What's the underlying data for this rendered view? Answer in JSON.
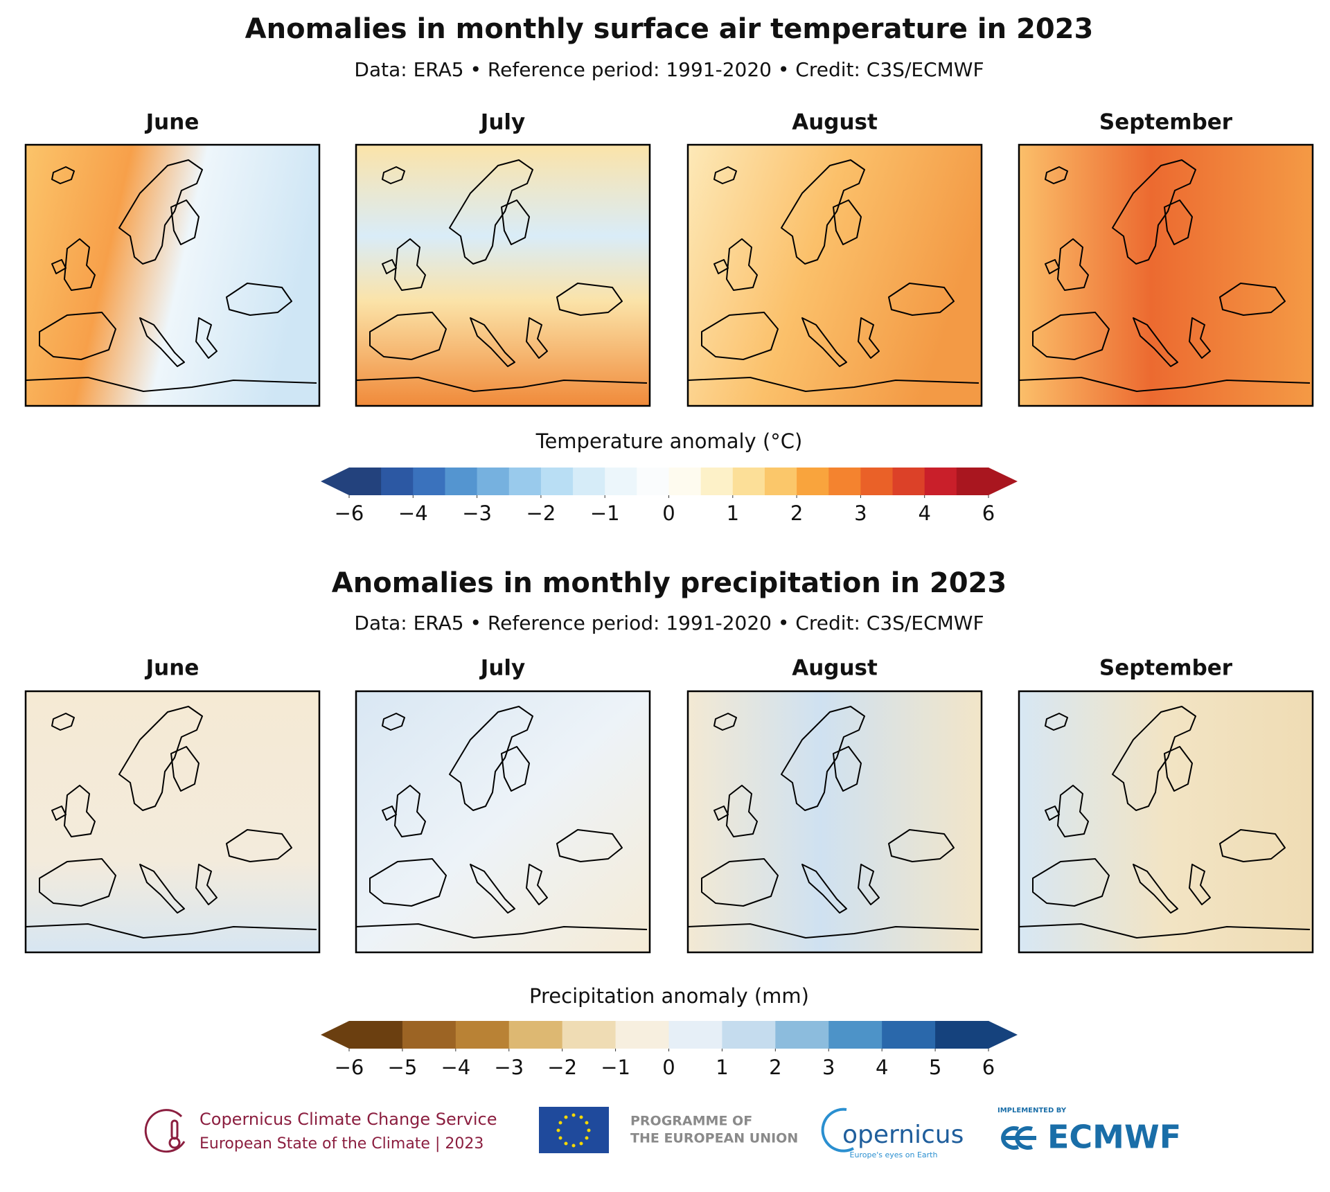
{
  "temperature": {
    "title": "Anomalies in monthly surface air temperature in 2023",
    "subtitle": "Data: ERA5 • Reference period: 1991-2020 • Credit: C3S/ECMWF",
    "panels": [
      "June",
      "July",
      "August",
      "September"
    ],
    "colorbar": {
      "label": "Temperature anomaly (°C)",
      "ticks": [
        {
          "value": -6,
          "label": "−6"
        },
        {
          "value": -4,
          "label": "−4"
        },
        {
          "value": -3,
          "label": "−3"
        },
        {
          "value": -2,
          "label": "−2"
        },
        {
          "value": -1,
          "label": "−1"
        },
        0,
        1,
        2,
        3,
        4,
        6
      ],
      "colors": [
        "#23427d",
        "#2c58a3",
        "#3a72bd",
        "#5495d0",
        "#76b1df",
        "#99caec",
        "#b9def4",
        "#d6ecf8",
        "#ecf6fb",
        "#fafcfd",
        "#fefbef",
        "#fdf1c8",
        "#fcdf98",
        "#fbc76a",
        "#f9a43d",
        "#f4832f",
        "#ea6128",
        "#dc4128",
        "#c91f2a",
        "#a9161f"
      ]
    }
  },
  "precipitation": {
    "title": "Anomalies in monthly precipitation in 2023",
    "subtitle": "Data: ERA5 • Reference period: 1991-2020 • Credit: C3S/ECMWF",
    "panels": [
      "June",
      "July",
      "August",
      "September"
    ],
    "colorbar": {
      "label": "Precipitation anomaly (mm)",
      "ticks": [
        {
          "value": -6,
          "label": "−6"
        },
        {
          "value": -5,
          "label": "−5"
        },
        {
          "value": -4,
          "label": "−4"
        },
        {
          "value": -3,
          "label": "−3"
        },
        {
          "value": -2,
          "label": "−2"
        },
        {
          "value": -1,
          "label": "−1"
        },
        0,
        1,
        2,
        3,
        4,
        5,
        6
      ],
      "colors": [
        "#6b3f10",
        "#9c6424",
        "#b98235",
        "#ddb872",
        "#efdcb4",
        "#f7efdf",
        "#e6eff7",
        "#c5dcee",
        "#8cbcdd",
        "#4d93c8",
        "#2a68ab",
        "#15427d"
      ]
    }
  },
  "footer": {
    "c3s_line1": "Copernicus Climate Change Service",
    "c3s_line2": "European State of the Climate | 2023",
    "eu_line1": "PROGRAMME OF",
    "eu_line2": "THE EUROPEAN UNION",
    "copernicus": "opernicus",
    "copernicus_tagline": "Europe's eyes on Earth",
    "ecmwf_small": "IMPLEMENTED BY",
    "ecmwf": "ECMWF"
  }
}
